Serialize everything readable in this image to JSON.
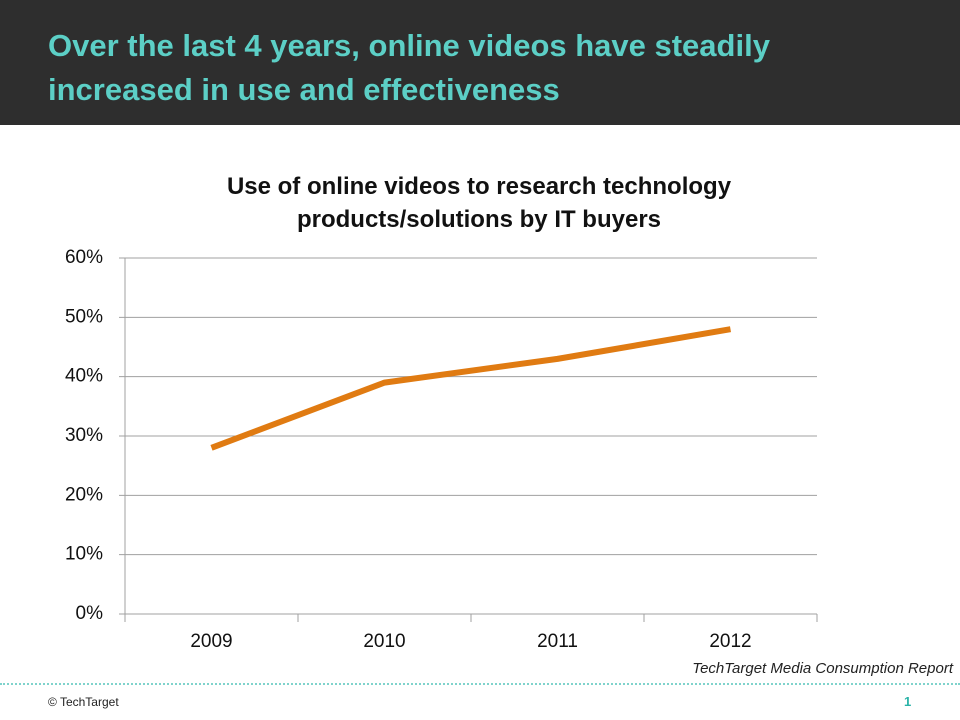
{
  "header": {
    "title": "Over the last 4 years, online videos have steadily increased in use and effectiveness"
  },
  "chart_data": {
    "type": "line",
    "title": "Use of online videos to research technology products/solutions by IT buyers",
    "categories": [
      "2009",
      "2010",
      "2011",
      "2012"
    ],
    "values": [
      28,
      39,
      43,
      48
    ],
    "color": "#e07b12",
    "ylim": [
      0,
      60
    ],
    "yticks": [
      {
        "value": 0,
        "label": "0%"
      },
      {
        "value": 10,
        "label": "10%"
      },
      {
        "value": 20,
        "label": "20%"
      },
      {
        "value": 30,
        "label": "30%"
      },
      {
        "value": 40,
        "label": "40%"
      },
      {
        "value": 50,
        "label": "50%"
      },
      {
        "value": 60,
        "label": "60%"
      }
    ],
    "grid": true
  },
  "source": "TechTarget Media Consumption Report",
  "footer": {
    "copyright": "© TechTarget",
    "page": "1"
  }
}
